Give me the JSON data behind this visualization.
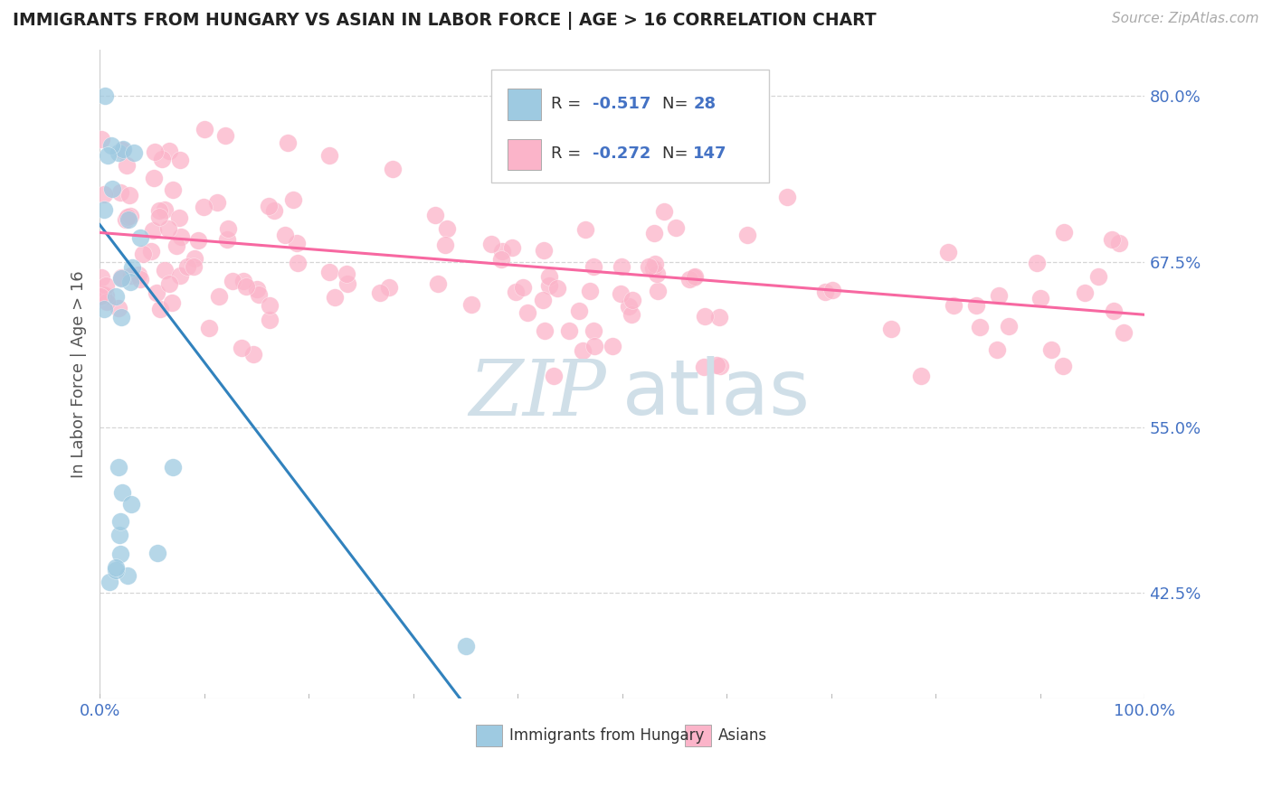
{
  "title": "IMMIGRANTS FROM HUNGARY VS ASIAN IN LABOR FORCE | AGE > 16 CORRELATION CHART",
  "source": "Source: ZipAtlas.com",
  "ylabel": "In Labor Force | Age > 16",
  "xlim": [
    0.0,
    1.0
  ],
  "ylim": [
    0.345,
    0.835
  ],
  "yticks": [
    0.425,
    0.55,
    0.675,
    0.8
  ],
  "ytick_labels": [
    "42.5%",
    "55.0%",
    "67.5%",
    "80.0%"
  ],
  "xtick_labels": [
    "0.0%",
    "100.0%"
  ],
  "blue_color": "#9ecae1",
  "pink_color": "#fbb4c9",
  "blue_line_color": "#3182bd",
  "pink_line_color": "#f768a1",
  "watermark_zip": "ZIP",
  "watermark_atlas": "atlas",
  "watermark_color": "#d0dfe8",
  "background_color": "#ffffff",
  "title_color": "#222222",
  "axis_label_color": "#555555",
  "tick_label_color": "#4472c4",
  "source_color": "#aaaaaa",
  "legend_label1": "Immigrants from Hungary",
  "legend_label2": "Asians",
  "blue_trend_x": [
    0.0,
    0.345
  ],
  "blue_trend_y": [
    0.703,
    0.345
  ],
  "pink_trend_x": [
    0.0,
    1.0
  ],
  "pink_trend_y": [
    0.697,
    0.635
  ],
  "gridline_color": "#cccccc",
  "gridline_style": "--",
  "gridline_alpha": 0.8
}
